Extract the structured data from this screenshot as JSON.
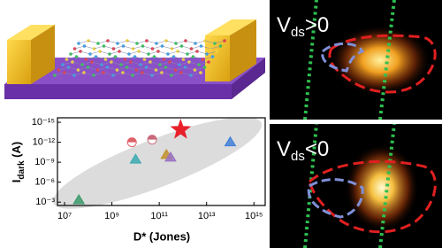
{
  "chart_data": {
    "type": "scatter",
    "x_label": "D* (Jones)",
    "y_label": {
      "main": "I",
      "sub": "dark",
      "rest": " (A)"
    },
    "x": [
      800000000000.0,
      7000000000.0,
      50000000000.0,
      100000000000000.0,
      10000000000.0,
      200000000000.0,
      300000000000.0,
      40000000.0
    ],
    "values": [
      1.3e-14,
      1e-12,
      4e-13,
      1e-12,
      4e-10,
      8e-11,
      2e-10,
      0.0005
    ],
    "colors": [
      "#e8202a",
      "#e0606a",
      "#c86a7a",
      "#3f7fd8",
      "#3aaab0",
      "#c0902a",
      "#9a70c0",
      "#3a9a6a"
    ],
    "markers": [
      "star",
      "half-circle",
      "half-circle",
      "triangle",
      "triangle",
      "triangle",
      "triangle",
      "triangle"
    ],
    "x_log": true,
    "y_log": true,
    "y_inverted": true,
    "xlim": [
      5000000.0,
      3000000000000000.0
    ],
    "ylim": [
      2.1e-16,
      0.0032
    ],
    "xticks": [
      {
        "value": 10000000.0,
        "label": "10⁷"
      },
      {
        "value": 1000000000.0,
        "label": "10⁹"
      },
      {
        "value": 100000000000.0,
        "label": "10¹¹"
      },
      {
        "value": 10000000000000.0,
        "label": "10¹³"
      },
      {
        "value": 1000000000000000.0,
        "label": "10¹⁵"
      }
    ],
    "yticks": [
      {
        "value": 1e-15,
        "label": "10⁻¹⁵"
      },
      {
        "value": 1e-12,
        "label": "10⁻¹²"
      },
      {
        "value": 1e-09,
        "label": "10⁻⁹"
      },
      {
        "value": 1e-06,
        "label": "10⁻⁶"
      },
      {
        "value": 0.001,
        "label": "10⁻³"
      }
    ]
  },
  "panels": [
    {
      "main": "V",
      "sub": "ds",
      "rest": ">0"
    },
    {
      "main": "V",
      "sub": "ds",
      "rest": "<0"
    }
  ]
}
